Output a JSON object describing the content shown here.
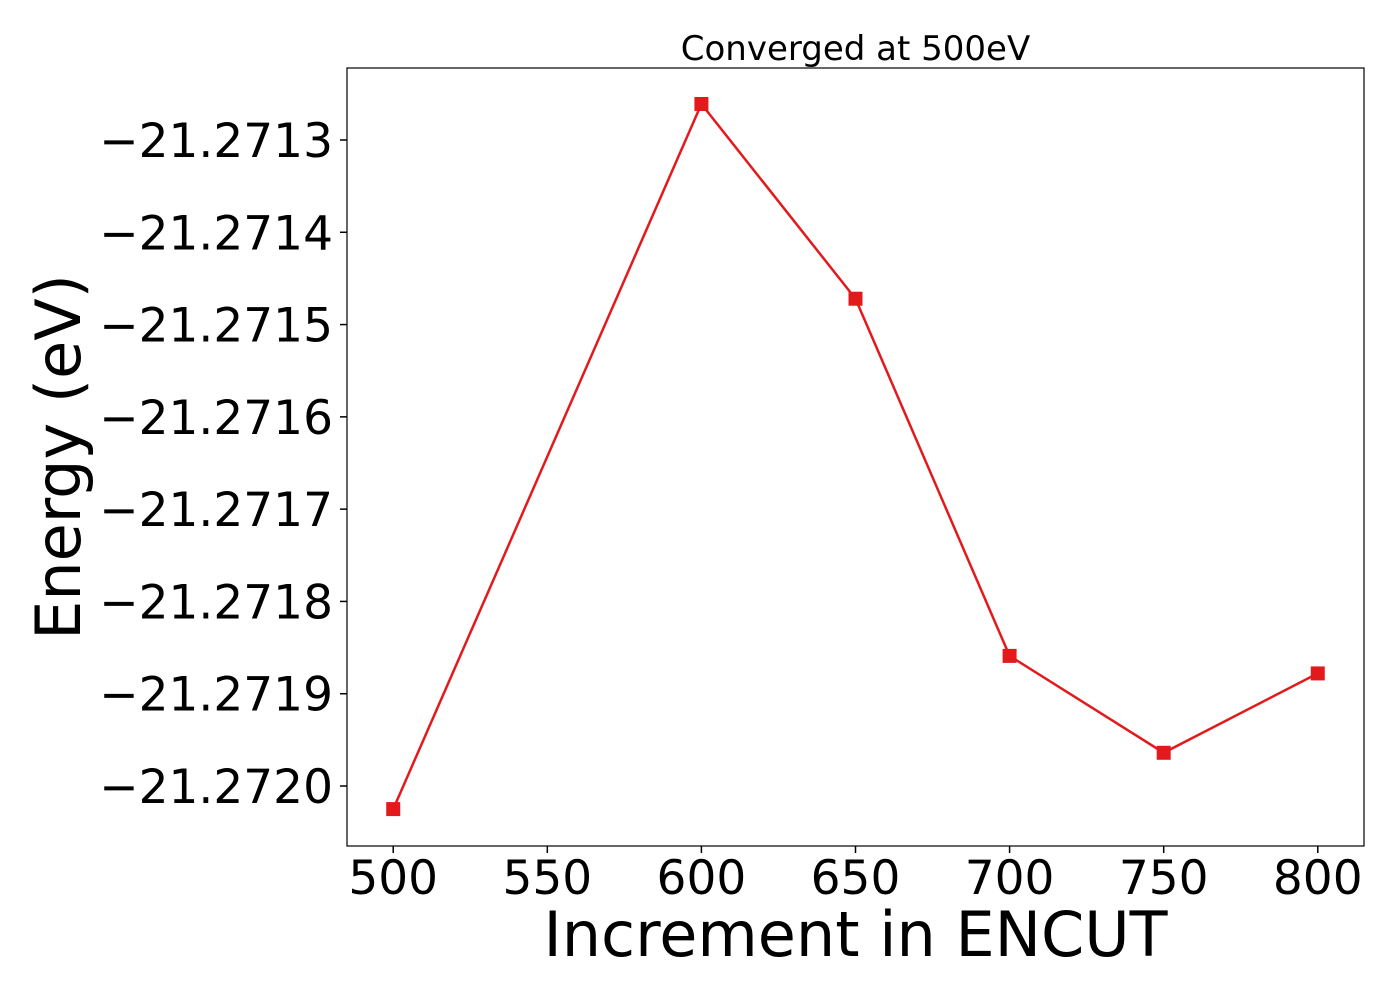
{
  "chart_data": {
    "type": "line",
    "title": "Converged at 500eV",
    "xlabel": "Increment in ENCUT",
    "ylabel": "Energy (eV)",
    "x": [
      500,
      600,
      650,
      700,
      750,
      800
    ],
    "series": [
      {
        "values": [
          -21.272025,
          -21.271261,
          -21.271472,
          -21.271859,
          -21.271964,
          -21.271878
        ],
        "color": "#e31a1c",
        "marker": "square"
      }
    ],
    "xlim": [
      485,
      815
    ],
    "ylim": [
      -21.272065,
      -21.271222
    ],
    "xticks": [
      500,
      550,
      600,
      650,
      700,
      750,
      800
    ],
    "yticks": [
      -21.2713,
      -21.2714,
      -21.2715,
      -21.2716,
      -21.2717,
      -21.2718,
      -21.2719,
      -21.272
    ],
    "ytick_labels": [
      "−21.2713",
      "−21.2714",
      "−21.2715",
      "−21.2716",
      "−21.2717",
      "−21.2718",
      "−21.2719",
      "−21.2720"
    ],
    "grid": false,
    "legend": "none"
  }
}
